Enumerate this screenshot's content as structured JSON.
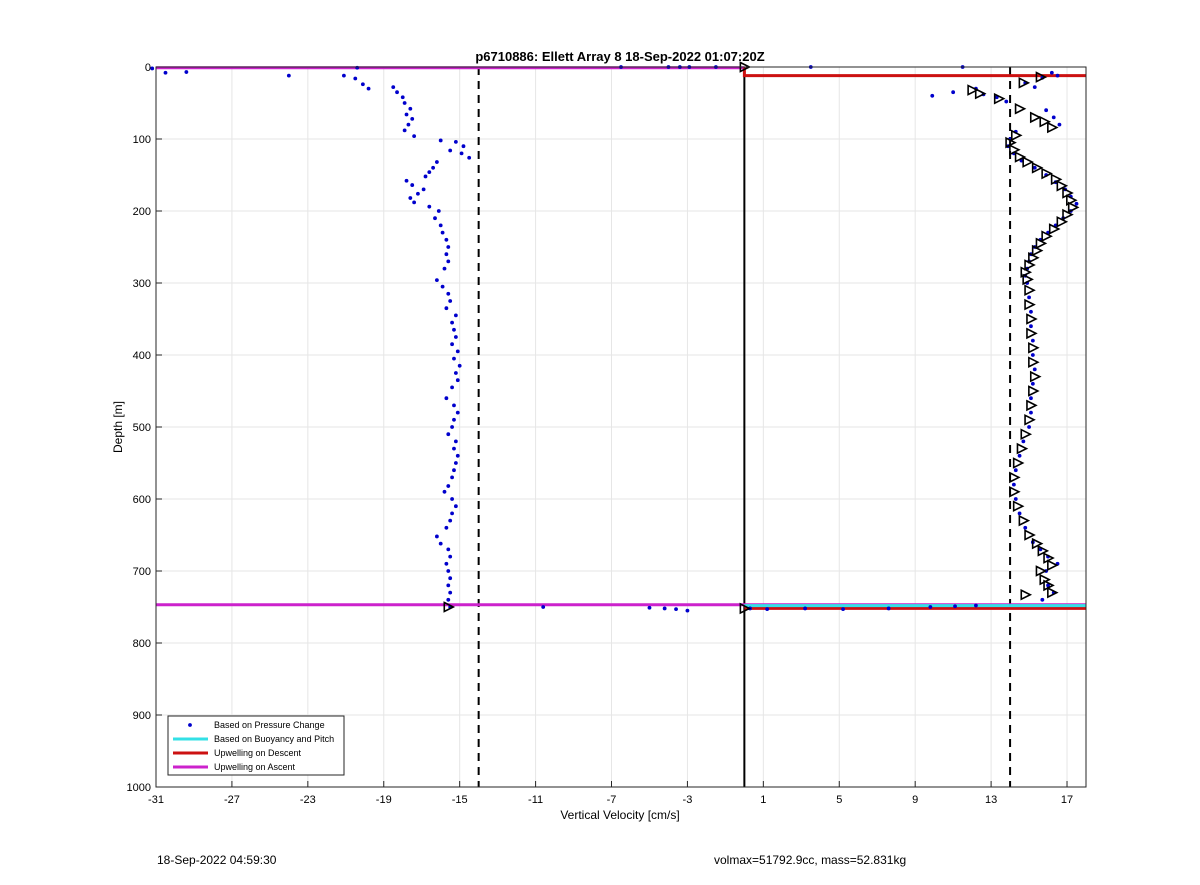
{
  "footer": {
    "timestamp": "18-Sep-2022 04:59:30",
    "info": "volmax=51792.9cc, mass=52.831kg"
  },
  "chart_data": {
    "type": "scatter",
    "title": "p6710886: Ellett Array 8 18-Sep-2022 01:07:20Z",
    "xlabel": "Vertical Velocity [cm/s]",
    "ylabel": "Depth [m]",
    "xlim": [
      -31,
      18
    ],
    "ylim": [
      0,
      1000
    ],
    "y_reversed": true,
    "grid": true,
    "xticks": [
      -31,
      -27,
      -23,
      -19,
      -15,
      -11,
      -7,
      -3,
      1,
      5,
      9,
      13,
      17
    ],
    "yticks": [
      0,
      100,
      200,
      300,
      400,
      500,
      600,
      700,
      800,
      900,
      1000
    ],
    "legend": {
      "placement": "bottom-left",
      "entries": [
        {
          "label": "Based on Pressure Change",
          "color": "#0000cc",
          "style": "dot"
        },
        {
          "label": "Based on Buoyancy and Pitch",
          "color": "#33e0e6",
          "style": "line"
        },
        {
          "label": "Upwelling on Descent",
          "color": "#cc1111",
          "style": "line"
        },
        {
          "label": "Upwelling on Ascent",
          "color": "#cc22cc",
          "style": "line"
        }
      ]
    },
    "reference_lines": {
      "solid_vertical_x": 0,
      "dashed_vertical_x": [
        -14,
        14
      ]
    },
    "colors": {
      "pressure_change": "#0000cc",
      "buoyancy_pitch": "#33e0e6",
      "descent": "#cc1111",
      "ascent": "#cc22cc",
      "markers": "#000000"
    },
    "series": [
      {
        "name": "Based on Pressure Change (ascent)",
        "points": [
          [
            -31.2,
            2
          ],
          [
            -30.5,
            8
          ],
          [
            -29.4,
            7
          ],
          [
            -24,
            12
          ],
          [
            -20.4,
            1
          ],
          [
            -21.1,
            12
          ],
          [
            -20.5,
            16
          ],
          [
            -20.1,
            24
          ],
          [
            -19.8,
            30
          ],
          [
            -18.5,
            28
          ],
          [
            -18.3,
            35
          ],
          [
            -18,
            42
          ],
          [
            -17.9,
            50
          ],
          [
            -17.6,
            58
          ],
          [
            -17.8,
            66
          ],
          [
            -17.5,
            72
          ],
          [
            -17.7,
            80
          ],
          [
            -17.9,
            88
          ],
          [
            -17.4,
            96
          ],
          [
            -16,
            102
          ],
          [
            -15.2,
            104
          ],
          [
            -14.8,
            110
          ],
          [
            -15.5,
            116
          ],
          [
            -14.9,
            120
          ],
          [
            -14.5,
            126
          ],
          [
            -16.2,
            132
          ],
          [
            -16.4,
            140
          ],
          [
            -16.6,
            146
          ],
          [
            -16.8,
            152
          ],
          [
            -17.8,
            158
          ],
          [
            -17.5,
            164
          ],
          [
            -16.9,
            170
          ],
          [
            -17.2,
            176
          ],
          [
            -17.6,
            182
          ],
          [
            -17.4,
            188
          ],
          [
            -16.6,
            194
          ],
          [
            -16.1,
            200
          ],
          [
            -16.3,
            210
          ],
          [
            -16.0,
            220
          ],
          [
            -15.9,
            230
          ],
          [
            -15.7,
            240
          ],
          [
            -15.6,
            250
          ],
          [
            -15.7,
            260
          ],
          [
            -15.6,
            270
          ],
          [
            -15.8,
            280
          ],
          [
            -16.2,
            296
          ],
          [
            -15.9,
            305
          ],
          [
            -15.6,
            315
          ],
          [
            -15.5,
            325
          ],
          [
            -15.7,
            335
          ],
          [
            -15.2,
            345
          ],
          [
            -15.4,
            355
          ],
          [
            -15.3,
            365
          ],
          [
            -15.2,
            375
          ],
          [
            -15.4,
            385
          ],
          [
            -15.1,
            395
          ],
          [
            -15.3,
            405
          ],
          [
            -15.0,
            415
          ],
          [
            -15.2,
            425
          ],
          [
            -15.1,
            435
          ],
          [
            -15.4,
            445
          ],
          [
            -15.7,
            460
          ],
          [
            -15.3,
            470
          ],
          [
            -15.1,
            480
          ],
          [
            -15.3,
            490
          ],
          [
            -15.4,
            500
          ],
          [
            -15.6,
            510
          ],
          [
            -15.2,
            520
          ],
          [
            -15.3,
            530
          ],
          [
            -15.1,
            540
          ],
          [
            -15.2,
            550
          ],
          [
            -15.3,
            560
          ],
          [
            -15.4,
            570
          ],
          [
            -15.6,
            582
          ],
          [
            -15.8,
            590
          ],
          [
            -15.4,
            600
          ],
          [
            -15.2,
            610
          ],
          [
            -15.4,
            620
          ],
          [
            -15.5,
            630
          ],
          [
            -15.7,
            640
          ],
          [
            -16.2,
            652
          ],
          [
            -16.0,
            662
          ],
          [
            -15.6,
            670
          ],
          [
            -15.5,
            680
          ],
          [
            -15.7,
            690
          ],
          [
            -15.6,
            700
          ],
          [
            -15.5,
            710
          ],
          [
            -15.6,
            720
          ],
          [
            -15.5,
            730
          ],
          [
            -15.6,
            740
          ],
          [
            -15.5,
            750
          ],
          [
            -10.6,
            750
          ],
          [
            -5.0,
            751
          ],
          [
            -4.2,
            752
          ],
          [
            -3.6,
            753
          ],
          [
            -3.0,
            755
          ],
          [
            -6.5,
            0
          ],
          [
            -4.0,
            0
          ],
          [
            -3.4,
            0
          ],
          [
            -2.9,
            0
          ],
          [
            -1.5,
            0
          ]
        ]
      },
      {
        "name": "Based on Pressure Change (descent)",
        "points": [
          [
            3.5,
            0
          ],
          [
            11.5,
            0
          ],
          [
            9.9,
            40
          ],
          [
            11.0,
            35
          ],
          [
            12.2,
            30
          ],
          [
            12.6,
            38
          ],
          [
            13.3,
            42
          ],
          [
            13.8,
            48
          ],
          [
            14.8,
            22
          ],
          [
            15.3,
            28
          ],
          [
            15.7,
            15
          ],
          [
            16.2,
            8
          ],
          [
            16.5,
            12
          ],
          [
            15.9,
            60
          ],
          [
            16.3,
            70
          ],
          [
            16.6,
            80
          ],
          [
            14.3,
            90
          ],
          [
            14.0,
            100
          ],
          [
            13.9,
            110
          ],
          [
            14.2,
            120
          ],
          [
            14.6,
            130
          ],
          [
            15.3,
            140
          ],
          [
            15.9,
            150
          ],
          [
            16.4,
            160
          ],
          [
            16.9,
            170
          ],
          [
            17.2,
            180
          ],
          [
            17.5,
            190
          ],
          [
            17.2,
            200
          ],
          [
            16.8,
            210
          ],
          [
            16.4,
            220
          ],
          [
            16.0,
            230
          ],
          [
            15.6,
            240
          ],
          [
            15.3,
            250
          ],
          [
            15.1,
            260
          ],
          [
            15.0,
            270
          ],
          [
            14.9,
            280
          ],
          [
            14.8,
            290
          ],
          [
            14.9,
            300
          ],
          [
            15.0,
            320
          ],
          [
            15.1,
            340
          ],
          [
            15.1,
            360
          ],
          [
            15.2,
            380
          ],
          [
            15.2,
            400
          ],
          [
            15.3,
            420
          ],
          [
            15.2,
            440
          ],
          [
            15.1,
            460
          ],
          [
            15.1,
            480
          ],
          [
            15.0,
            500
          ],
          [
            14.7,
            520
          ],
          [
            14.5,
            540
          ],
          [
            14.3,
            560
          ],
          [
            14.2,
            580
          ],
          [
            14.3,
            600
          ],
          [
            14.5,
            620
          ],
          [
            14.8,
            640
          ],
          [
            15.2,
            660
          ],
          [
            15.6,
            670
          ],
          [
            16.0,
            680
          ],
          [
            16.5,
            690
          ],
          [
            15.9,
            700
          ],
          [
            16.0,
            720
          ],
          [
            16.3,
            730
          ],
          [
            15.7,
            740
          ],
          [
            0.3,
            752
          ],
          [
            1.2,
            753
          ],
          [
            3.2,
            752
          ],
          [
            5.2,
            753
          ],
          [
            7.6,
            752
          ],
          [
            9.8,
            750
          ],
          [
            11.1,
            749
          ],
          [
            12.2,
            748
          ]
        ]
      },
      {
        "name": "Upwelling on Ascent",
        "segments": [
          {
            "x": [
              -31,
              0
            ],
            "y": [
              1,
              1
            ]
          },
          {
            "x": [
              -31,
              18
            ],
            "y": [
              747,
              747
            ]
          }
        ]
      },
      {
        "name": "Upwelling on Descent",
        "segments": [
          {
            "x": [
              0,
              0,
              18
            ],
            "y": [
              1,
              12,
              12
            ]
          },
          {
            "x": [
              0,
              18
            ],
            "y": [
              752,
              752
            ]
          }
        ]
      },
      {
        "name": "Based on Buoyancy and Pitch",
        "segments": [
          {
            "x": [
              0,
              18
            ],
            "y": [
              748,
              748
            ]
          }
        ]
      },
      {
        "name": "markers",
        "points": [
          [
            0,
            0
          ],
          [
            0,
            752
          ],
          [
            -15.6,
            750
          ],
          [
            14.7,
            22
          ],
          [
            15.6,
            14
          ],
          [
            12.0,
            32
          ],
          [
            12.4,
            37
          ],
          [
            13.4,
            44
          ],
          [
            14.5,
            58
          ],
          [
            15.3,
            70
          ],
          [
            15.8,
            76
          ],
          [
            16.2,
            84
          ],
          [
            14.3,
            95
          ],
          [
            14.0,
            105
          ],
          [
            14.2,
            115
          ],
          [
            14.5,
            125
          ],
          [
            14.9,
            132
          ],
          [
            15.4,
            140
          ],
          [
            15.9,
            148
          ],
          [
            16.4,
            156
          ],
          [
            16.7,
            165
          ],
          [
            17.0,
            175
          ],
          [
            17.2,
            185
          ],
          [
            17.3,
            195
          ],
          [
            17.0,
            205
          ],
          [
            16.7,
            215
          ],
          [
            16.3,
            225
          ],
          [
            15.9,
            235
          ],
          [
            15.6,
            245
          ],
          [
            15.4,
            255
          ],
          [
            15.2,
            265
          ],
          [
            15.0,
            275
          ],
          [
            14.8,
            285
          ],
          [
            14.9,
            295
          ],
          [
            15.0,
            310
          ],
          [
            15.0,
            330
          ],
          [
            15.1,
            350
          ],
          [
            15.1,
            370
          ],
          [
            15.2,
            390
          ],
          [
            15.2,
            410
          ],
          [
            15.3,
            430
          ],
          [
            15.2,
            450
          ],
          [
            15.1,
            470
          ],
          [
            15.0,
            490
          ],
          [
            14.8,
            510
          ],
          [
            14.6,
            530
          ],
          [
            14.4,
            550
          ],
          [
            14.2,
            570
          ],
          [
            14.2,
            590
          ],
          [
            14.4,
            610
          ],
          [
            14.7,
            630
          ],
          [
            15.0,
            650
          ],
          [
            15.4,
            662
          ],
          [
            15.7,
            672
          ],
          [
            16.0,
            682
          ],
          [
            16.2,
            692
          ],
          [
            15.6,
            700
          ],
          [
            15.8,
            712
          ],
          [
            16.0,
            720
          ],
          [
            16.2,
            730
          ],
          [
            14.8,
            733
          ]
        ]
      }
    ]
  }
}
